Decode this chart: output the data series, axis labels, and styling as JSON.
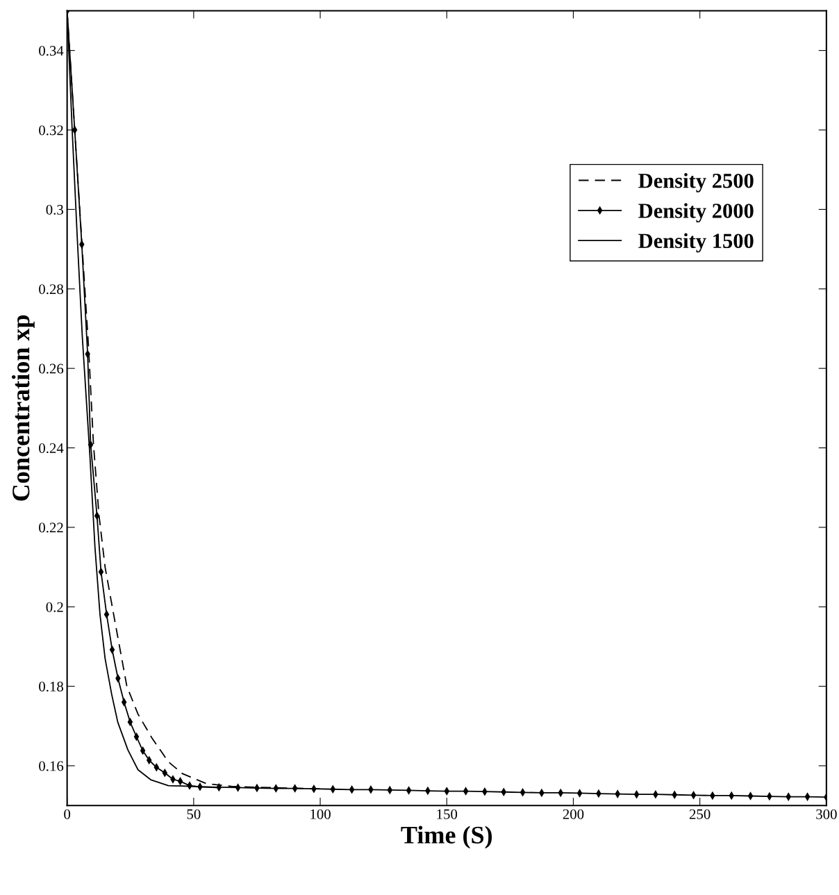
{
  "chart_data": {
    "type": "line",
    "xlabel": "Time (S)",
    "ylabel": "Concentration xp",
    "xlim": [
      0,
      300
    ],
    "xticks": [
      0,
      50,
      100,
      150,
      200,
      250,
      300
    ],
    "ylim": [
      0.15,
      0.35
    ],
    "yticks": [
      0.16,
      0.18,
      0.2,
      0.22,
      0.24,
      0.26,
      0.28,
      0.3,
      0.32,
      0.34
    ],
    "grid": false,
    "legend": "top right",
    "series": [
      {
        "name": "Density 2500",
        "color": "#000000",
        "line_style": "dashed",
        "marker": "none",
        "x": [
          0,
          3,
          6,
          8.5,
          10.4,
          12.6,
          15,
          18.4,
          23.6,
          28,
          33.5,
          40,
          45.6,
          55,
          65,
          80,
          100
        ],
        "values": [
          0.35,
          0.32,
          0.29,
          0.265,
          0.241,
          0.223,
          0.21,
          0.198,
          0.18,
          0.173,
          0.167,
          0.161,
          0.158,
          0.1555,
          0.1548,
          0.1545,
          0.1542
        ]
      },
      {
        "name": "Density 2000",
        "color": "#000000",
        "line_style": "solid",
        "marker": "diamond",
        "x": [
          0,
          3,
          5.8,
          8.1,
          9.3,
          11.8,
          13.4,
          15.6,
          17.8,
          20.1,
          22.5,
          24.9,
          27.4,
          29.9,
          32.4,
          35.3,
          38.6,
          41.8,
          44.7,
          48.4,
          52.5,
          60,
          67.5,
          75,
          82.5,
          90,
          97.5,
          105,
          112.5,
          120,
          127.5,
          135,
          142.5,
          150,
          157.5,
          165,
          172.5,
          180,
          187.5,
          195,
          202.5,
          210,
          217.5,
          225,
          232.5,
          240,
          247.5,
          255,
          262.5,
          270,
          277.5,
          285,
          292.5,
          300
        ],
        "values": [
          0.35,
          0.32,
          0.2912,
          0.2636,
          0.2408,
          0.2229,
          0.2088,
          0.1981,
          0.1892,
          0.182,
          0.176,
          0.171,
          0.1673,
          0.1638,
          0.1614,
          0.1596,
          0.1582,
          0.1566,
          0.1561,
          0.155,
          0.1547,
          0.1546,
          0.1545,
          0.1544,
          0.1543,
          0.1543,
          0.1542,
          0.1541,
          0.154,
          0.154,
          0.1539,
          0.1538,
          0.1537,
          0.1536,
          0.1536,
          0.1535,
          0.1534,
          0.1533,
          0.1532,
          0.1532,
          0.1531,
          0.153,
          0.1529,
          0.1528,
          0.1528,
          0.1527,
          0.1526,
          0.1525,
          0.1525,
          0.1524,
          0.1523,
          0.1522,
          0.1522,
          0.1521
        ]
      },
      {
        "name": "Density 1500",
        "color": "#000000",
        "line_style": "solid",
        "marker": "none",
        "x": [
          0,
          2,
          4,
          6,
          9,
          11,
          13,
          15,
          17.6,
          20,
          24,
          28,
          33,
          40,
          50,
          60
        ],
        "values": [
          0.35,
          0.32,
          0.293,
          0.268,
          0.238,
          0.215,
          0.198,
          0.187,
          0.178,
          0.171,
          0.164,
          0.159,
          0.1565,
          0.155,
          0.1548,
          0.1545
        ]
      }
    ]
  }
}
